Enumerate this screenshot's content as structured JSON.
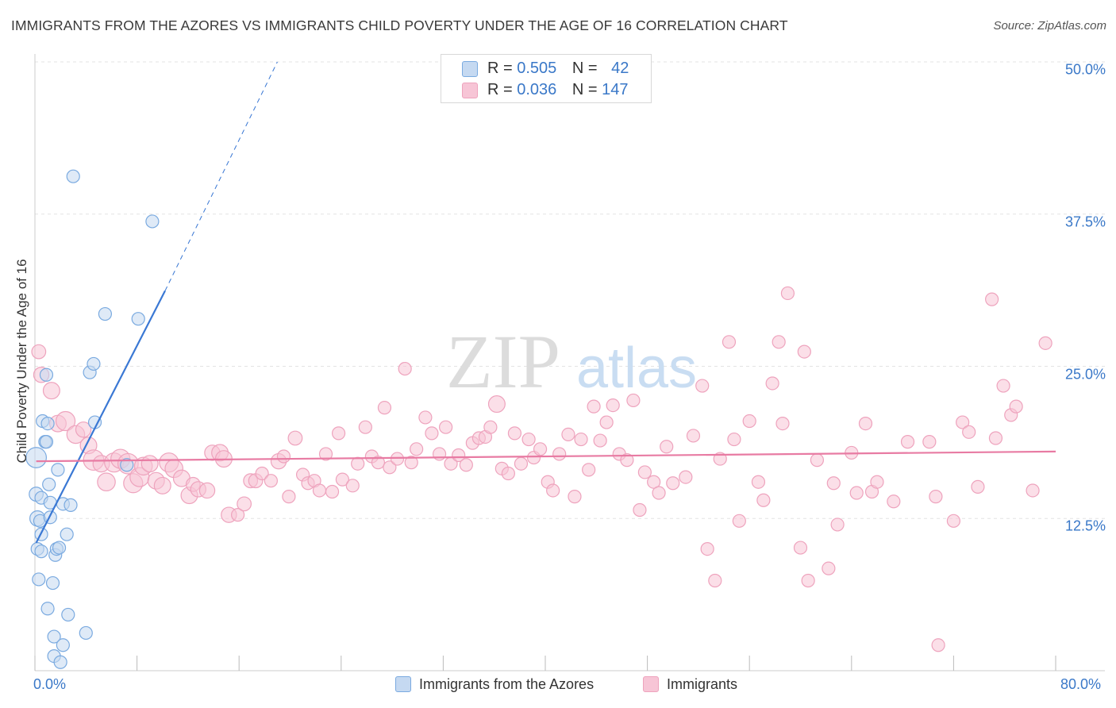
{
  "title": "IMMIGRANTS FROM THE AZORES VS IMMIGRANTS CHILD POVERTY UNDER THE AGE OF 16 CORRELATION CHART",
  "source": "Source: ZipAtlas.com",
  "watermark": {
    "zip": "ZIP",
    "atlas": "atlas"
  },
  "legend_top": {
    "rows": [
      {
        "r_label": "R =",
        "r_value": "0.505",
        "n_label": "N =",
        "n_value": "42"
      },
      {
        "r_label": "R =",
        "r_value": "0.036",
        "n_label": "N =",
        "n_value": "147"
      }
    ]
  },
  "legend_bottom": {
    "series_a": "Immigrants from the Azores",
    "series_b": "Immigrants"
  },
  "colors": {
    "azores_fill": "#c5d9f1",
    "azores_stroke": "#7aaae0",
    "azores_line": "#3a78d4",
    "immig_fill": "#f7c5d6",
    "immig_stroke": "#eea3bd",
    "immig_line": "#e87ba3",
    "axis_text": "#3a78c8",
    "grid": "#e3e3e3"
  },
  "chart_data": {
    "type": "scatter",
    "title": "IMMIGRANTS FROM THE AZORES VS IMMIGRANTS CHILD POVERTY UNDER THE AGE OF 16 CORRELATION CHART",
    "xlabel": "",
    "ylabel": "Child Poverty Under the Age of 16",
    "xlim": [
      0,
      80
    ],
    "ylim": [
      0,
      50
    ],
    "x_tick_labels": [
      "0.0%",
      "80.0%"
    ],
    "y_tick_labels": [
      "12.5%",
      "25.0%",
      "37.5%",
      "50.0%"
    ],
    "y_ticks": [
      12.5,
      25.0,
      37.5,
      50.0
    ],
    "grid": true,
    "legend_placement": "top-center",
    "series": [
      {
        "name": "Immigrants from the Azores",
        "R": 0.505,
        "N": 42,
        "trend": {
          "x0": 0.1,
          "y0": 10.5,
          "x1": 10.2,
          "y1": 31.2,
          "dash_to_x": 19.0,
          "dash_to_y": 50.0
        },
        "points": [
          [
            0.1,
            17.5,
            1.6
          ],
          [
            0.1,
            14.5,
            1.1
          ],
          [
            0.2,
            12.5,
            1.2
          ],
          [
            0.2,
            10.0,
            1.0
          ],
          [
            0.3,
            7.5,
            1.0
          ],
          [
            0.4,
            12.3,
            1.0
          ],
          [
            0.5,
            14.2,
            1.0
          ],
          [
            0.5,
            11.2,
            1.0
          ],
          [
            0.5,
            9.8,
            1.0
          ],
          [
            0.6,
            20.5,
            1.0
          ],
          [
            0.8,
            18.8,
            1.0
          ],
          [
            0.9,
            18.8,
            1.0
          ],
          [
            0.9,
            24.3,
            1.0
          ],
          [
            1.0,
            5.1,
            1.0
          ],
          [
            1.0,
            20.3,
            1.0
          ],
          [
            1.1,
            15.3,
            1.0
          ],
          [
            1.2,
            13.8,
            1.0
          ],
          [
            1.2,
            12.6,
            1.0
          ],
          [
            1.4,
            7.2,
            1.0
          ],
          [
            1.5,
            2.8,
            1.0
          ],
          [
            1.5,
            1.2,
            1.0
          ],
          [
            1.6,
            9.5,
            1.0
          ],
          [
            1.7,
            10.0,
            1.0
          ],
          [
            1.8,
            16.5,
            1.0
          ],
          [
            1.9,
            10.1,
            1.0
          ],
          [
            2.0,
            0.7,
            1.0
          ],
          [
            2.2,
            2.1,
            1.0
          ],
          [
            2.2,
            13.7,
            1.0
          ],
          [
            2.5,
            11.2,
            1.0
          ],
          [
            2.6,
            4.6,
            1.0
          ],
          [
            2.8,
            13.6,
            1.0
          ],
          [
            3.0,
            40.6,
            1.0
          ],
          [
            4.0,
            3.1,
            1.0
          ],
          [
            4.3,
            24.5,
            1.0
          ],
          [
            4.6,
            25.2,
            1.0
          ],
          [
            4.7,
            20.4,
            1.0
          ],
          [
            5.5,
            29.3,
            1.0
          ],
          [
            7.2,
            16.9,
            1.0
          ],
          [
            8.1,
            28.9,
            1.0
          ],
          [
            9.2,
            36.9,
            1.0
          ]
        ]
      },
      {
        "name": "Immigrants",
        "R": 0.036,
        "N": 147,
        "trend": {
          "x0": 0.1,
          "y0": 17.2,
          "x1": 80.0,
          "y1": 18.0
        },
        "points": [
          [
            0.3,
            26.2,
            1.1
          ],
          [
            0.5,
            24.3,
            1.2
          ],
          [
            1.3,
            23.0,
            1.3
          ],
          [
            1.8,
            20.3,
            1.3
          ],
          [
            2.4,
            20.5,
            1.5
          ],
          [
            3.2,
            19.4,
            1.4
          ],
          [
            3.8,
            19.8,
            1.2
          ],
          [
            4.2,
            18.5,
            1.3
          ],
          [
            4.6,
            17.3,
            1.6
          ],
          [
            5.2,
            17.0,
            1.3
          ],
          [
            5.6,
            15.5,
            1.4
          ],
          [
            6.2,
            17.1,
            1.5
          ],
          [
            6.7,
            17.4,
            1.5
          ],
          [
            7.3,
            17.0,
            1.6
          ],
          [
            7.7,
            15.4,
            1.5
          ],
          [
            8.2,
            15.9,
            1.5
          ],
          [
            8.5,
            16.8,
            1.4
          ],
          [
            9.0,
            17.0,
            1.3
          ],
          [
            9.5,
            15.6,
            1.3
          ],
          [
            10.0,
            15.2,
            1.3
          ],
          [
            10.5,
            17.1,
            1.5
          ],
          [
            10.9,
            16.6,
            1.4
          ],
          [
            11.5,
            15.8,
            1.3
          ],
          [
            12.1,
            14.4,
            1.3
          ],
          [
            12.4,
            15.3,
            1.1
          ],
          [
            12.8,
            14.9,
            1.2
          ],
          [
            13.5,
            14.8,
            1.2
          ],
          [
            13.9,
            17.9,
            1.2
          ],
          [
            14.5,
            17.9,
            1.3
          ],
          [
            14.8,
            17.4,
            1.3
          ],
          [
            15.2,
            12.8,
            1.2
          ],
          [
            15.9,
            12.8,
            1.0
          ],
          [
            16.4,
            13.7,
            1.1
          ],
          [
            16.9,
            15.6,
            1.1
          ],
          [
            17.3,
            15.6,
            1.1
          ],
          [
            17.8,
            16.2,
            1.0
          ],
          [
            18.5,
            15.6,
            1.0
          ],
          [
            19.1,
            17.2,
            1.2
          ],
          [
            19.5,
            17.6,
            1.0
          ],
          [
            19.9,
            14.3,
            1.0
          ],
          [
            20.4,
            19.1,
            1.1
          ],
          [
            21.0,
            16.1,
            1.0
          ],
          [
            21.4,
            15.4,
            1.0
          ],
          [
            21.9,
            15.6,
            1.0
          ],
          [
            22.3,
            14.8,
            1.0
          ],
          [
            22.8,
            17.8,
            1.0
          ],
          [
            23.3,
            14.7,
            1.0
          ],
          [
            23.8,
            19.5,
            1.0
          ],
          [
            24.1,
            15.7,
            1.0
          ],
          [
            24.9,
            15.2,
            1.0
          ],
          [
            25.3,
            17.0,
            1.0
          ],
          [
            25.9,
            20.0,
            1.0
          ],
          [
            26.4,
            17.6,
            1.0
          ],
          [
            26.9,
            17.1,
            1.0
          ],
          [
            27.4,
            21.6,
            1.0
          ],
          [
            27.8,
            16.7,
            1.0
          ],
          [
            28.4,
            17.4,
            1.0
          ],
          [
            29.0,
            24.8,
            1.0
          ],
          [
            29.5,
            17.1,
            1.0
          ],
          [
            29.9,
            18.2,
            1.0
          ],
          [
            30.6,
            20.8,
            1.0
          ],
          [
            31.1,
            19.5,
            1.0
          ],
          [
            31.7,
            17.8,
            1.0
          ],
          [
            32.2,
            20.0,
            1.0
          ],
          [
            32.6,
            17.0,
            1.0
          ],
          [
            33.2,
            17.7,
            1.0
          ],
          [
            33.8,
            16.9,
            1.0
          ],
          [
            34.3,
            18.7,
            1.0
          ],
          [
            34.8,
            19.1,
            1.0
          ],
          [
            35.3,
            19.2,
            1.0
          ],
          [
            35.7,
            20.0,
            1.0
          ],
          [
            36.2,
            21.9,
            1.3
          ],
          [
            36.6,
            16.6,
            1.0
          ],
          [
            37.1,
            16.2,
            1.0
          ],
          [
            37.6,
            19.5,
            1.0
          ],
          [
            38.1,
            17.0,
            1.0
          ],
          [
            38.7,
            19.0,
            1.0
          ],
          [
            39.1,
            17.5,
            1.0
          ],
          [
            39.6,
            18.2,
            1.0
          ],
          [
            40.2,
            15.5,
            1.0
          ],
          [
            40.6,
            14.8,
            1.0
          ],
          [
            41.1,
            17.8,
            1.0
          ],
          [
            41.8,
            19.4,
            1.0
          ],
          [
            42.3,
            14.3,
            1.0
          ],
          [
            42.8,
            19.0,
            1.0
          ],
          [
            43.4,
            16.5,
            1.0
          ],
          [
            43.8,
            21.7,
            1.0
          ],
          [
            44.3,
            18.9,
            1.0
          ],
          [
            44.8,
            20.4,
            1.0
          ],
          [
            45.3,
            21.8,
            1.0
          ],
          [
            45.8,
            17.8,
            1.0
          ],
          [
            46.4,
            17.3,
            1.0
          ],
          [
            46.9,
            22.2,
            1.0
          ],
          [
            47.4,
            13.2,
            1.0
          ],
          [
            47.8,
            16.3,
            1.0
          ],
          [
            48.5,
            15.5,
            1.0
          ],
          [
            48.9,
            14.6,
            1.0
          ],
          [
            49.5,
            18.4,
            1.0
          ],
          [
            50.0,
            15.4,
            1.0
          ],
          [
            51.0,
            15.9,
            1.0
          ],
          [
            51.6,
            19.3,
            1.0
          ],
          [
            52.3,
            23.4,
            1.0
          ],
          [
            52.7,
            10.0,
            1.0
          ],
          [
            53.3,
            7.4,
            1.0
          ],
          [
            53.7,
            17.4,
            1.0
          ],
          [
            54.4,
            27.0,
            1.0
          ],
          [
            54.8,
            19.0,
            1.0
          ],
          [
            55.2,
            12.3,
            1.0
          ],
          [
            56.0,
            20.5,
            1.0
          ],
          [
            56.7,
            15.5,
            1.0
          ],
          [
            57.1,
            14.0,
            1.0
          ],
          [
            57.8,
            23.6,
            1.0
          ],
          [
            58.3,
            27.0,
            1.0
          ],
          [
            58.6,
            20.3,
            1.0
          ],
          [
            59.0,
            31.0,
            1.0
          ],
          [
            60.0,
            10.1,
            1.0
          ],
          [
            60.3,
            26.2,
            1.0
          ],
          [
            60.6,
            7.4,
            1.0
          ],
          [
            61.3,
            17.3,
            1.0
          ],
          [
            62.2,
            8.4,
            1.0
          ],
          [
            62.6,
            15.4,
            1.0
          ],
          [
            62.9,
            12.0,
            1.0
          ],
          [
            64.0,
            17.9,
            1.0
          ],
          [
            64.4,
            14.6,
            1.0
          ],
          [
            65.1,
            20.3,
            1.0
          ],
          [
            65.6,
            14.7,
            1.0
          ],
          [
            66.0,
            15.5,
            1.0
          ],
          [
            67.3,
            13.9,
            1.0
          ],
          [
            68.4,
            18.8,
            1.0
          ],
          [
            70.1,
            18.8,
            1.0
          ],
          [
            70.6,
            14.3,
            1.0
          ],
          [
            70.8,
            2.1,
            1.0
          ],
          [
            72.0,
            12.3,
            1.0
          ],
          [
            72.7,
            20.4,
            1.0
          ],
          [
            73.2,
            19.6,
            1.0
          ],
          [
            73.9,
            15.1,
            1.0
          ],
          [
            75.0,
            30.5,
            1.0
          ],
          [
            75.3,
            19.1,
            1.0
          ],
          [
            75.9,
            23.4,
            1.0
          ],
          [
            76.5,
            21.0,
            1.0
          ],
          [
            76.9,
            21.7,
            1.0
          ],
          [
            78.2,
            14.8,
            1.0
          ],
          [
            79.2,
            26.9,
            1.0
          ]
        ]
      }
    ]
  }
}
